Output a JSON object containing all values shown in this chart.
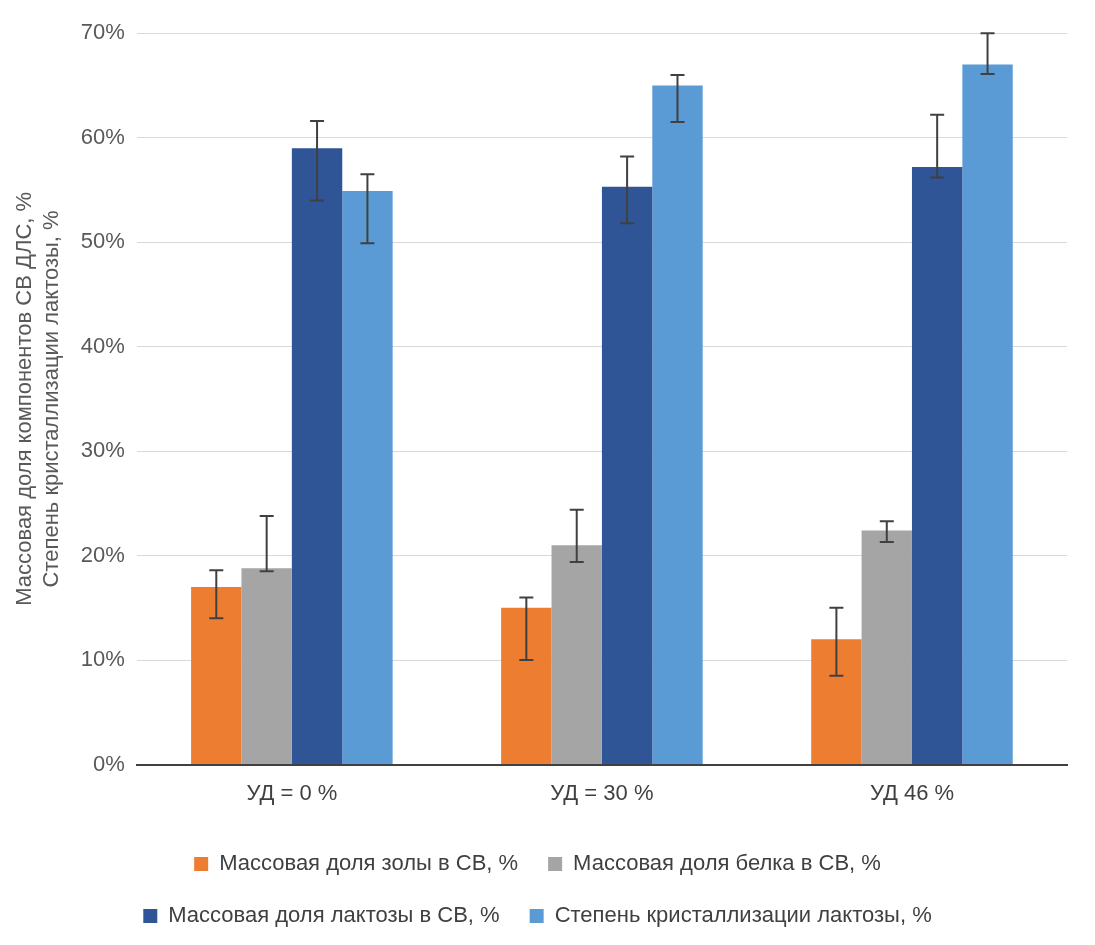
{
  "chart_data": {
    "type": "bar",
    "ylabel": "Массовая доля компонентов СВ ДЛС, %\nСтепень кристаллизации лактозы, %",
    "categories": [
      "УД = 0 %",
      "УД = 30 %",
      "УД 46 %"
    ],
    "series": [
      {
        "name": "Массовая доля золы в СВ, %",
        "color": "#ed7d31",
        "values": [
          17,
          15,
          12
        ],
        "errors": [
          [
            14,
            18.6
          ],
          [
            10,
            16
          ],
          [
            8.5,
            15
          ]
        ]
      },
      {
        "name": "Массовая доля белка в СВ, %",
        "color": "#a5a5a5",
        "values": [
          18.8,
          21,
          22.4
        ],
        "errors": [
          [
            18.5,
            23.8
          ],
          [
            19.4,
            24.4
          ],
          [
            21.3,
            23.3
          ]
        ]
      },
      {
        "name": "Массовая доля лактозы в СВ, %",
        "color": "#2f5597",
        "values": [
          59,
          55.3,
          57.2
        ],
        "errors": [
          [
            54,
            61.6
          ],
          [
            51.8,
            58.2
          ],
          [
            56.2,
            62.2
          ]
        ]
      },
      {
        "name": "Степень кристаллизации лактозы, %",
        "color": "#5b9bd5",
        "values": [
          54.9,
          65,
          67
        ],
        "errors": [
          [
            49.9,
            56.5
          ],
          [
            61.5,
            66
          ],
          [
            66.1,
            70
          ]
        ]
      }
    ],
    "ylim": [
      0,
      70
    ],
    "yticks": [
      {
        "value": 0,
        "label": "0%"
      },
      {
        "value": 10,
        "label": "10%"
      },
      {
        "value": 20,
        "label": "20%"
      },
      {
        "value": 30,
        "label": "30%"
      },
      {
        "value": 40,
        "label": "40%"
      },
      {
        "value": 50,
        "label": "50%"
      },
      {
        "value": 60,
        "label": "60%"
      },
      {
        "value": 70,
        "label": "70%"
      }
    ],
    "grid": "y",
    "legend": "bottom"
  }
}
